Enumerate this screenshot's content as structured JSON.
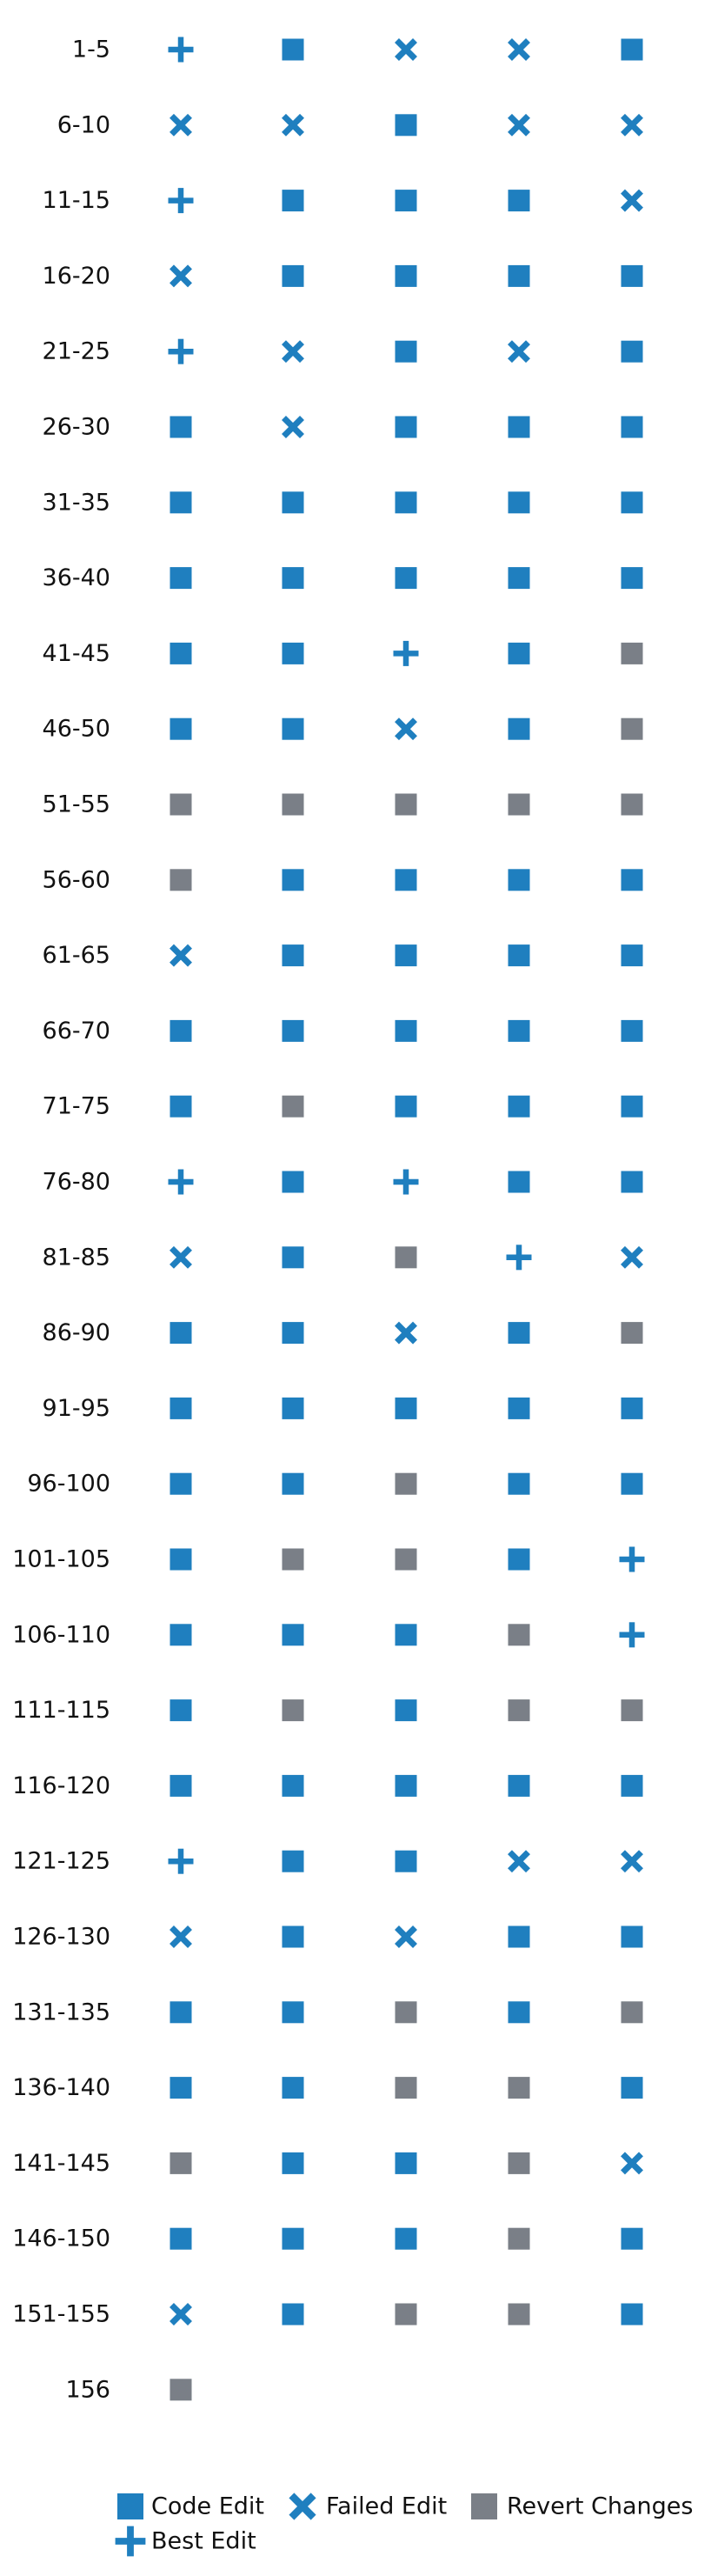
{
  "chart_data": {
    "type": "scatter",
    "title": "",
    "xlabel": "",
    "ylabel": "",
    "rows": [
      {
        "label": "1-5",
        "cells": [
          "best",
          "code",
          "failed",
          "failed",
          "code"
        ]
      },
      {
        "label": "6-10",
        "cells": [
          "failed",
          "failed",
          "code",
          "failed",
          "failed"
        ]
      },
      {
        "label": "11-15",
        "cells": [
          "best",
          "code",
          "code",
          "code",
          "failed"
        ]
      },
      {
        "label": "16-20",
        "cells": [
          "failed",
          "code",
          "code",
          "code",
          "code"
        ]
      },
      {
        "label": "21-25",
        "cells": [
          "best",
          "failed",
          "code",
          "failed",
          "code"
        ]
      },
      {
        "label": "26-30",
        "cells": [
          "code",
          "failed",
          "code",
          "code",
          "code"
        ]
      },
      {
        "label": "31-35",
        "cells": [
          "code",
          "code",
          "code",
          "code",
          "code"
        ]
      },
      {
        "label": "36-40",
        "cells": [
          "code",
          "code",
          "code",
          "code",
          "code"
        ]
      },
      {
        "label": "41-45",
        "cells": [
          "code",
          "code",
          "best",
          "code",
          "revert"
        ]
      },
      {
        "label": "46-50",
        "cells": [
          "code",
          "code",
          "failed",
          "code",
          "revert"
        ]
      },
      {
        "label": "51-55",
        "cells": [
          "revert",
          "revert",
          "revert",
          "revert",
          "revert"
        ]
      },
      {
        "label": "56-60",
        "cells": [
          "revert",
          "code",
          "code",
          "code",
          "code"
        ]
      },
      {
        "label": "61-65",
        "cells": [
          "failed",
          "code",
          "code",
          "code",
          "code"
        ]
      },
      {
        "label": "66-70",
        "cells": [
          "code",
          "code",
          "code",
          "code",
          "code"
        ]
      },
      {
        "label": "71-75",
        "cells": [
          "code",
          "revert",
          "code",
          "code",
          "code"
        ]
      },
      {
        "label": "76-80",
        "cells": [
          "best",
          "code",
          "best",
          "code",
          "code"
        ]
      },
      {
        "label": "81-85",
        "cells": [
          "failed",
          "code",
          "revert",
          "best",
          "failed"
        ]
      },
      {
        "label": "86-90",
        "cells": [
          "code",
          "code",
          "failed",
          "code",
          "revert"
        ]
      },
      {
        "label": "91-95",
        "cells": [
          "code",
          "code",
          "code",
          "code",
          "code"
        ]
      },
      {
        "label": "96-100",
        "cells": [
          "code",
          "code",
          "revert",
          "code",
          "code"
        ]
      },
      {
        "label": "101-105",
        "cells": [
          "code",
          "revert",
          "revert",
          "code",
          "best"
        ]
      },
      {
        "label": "106-110",
        "cells": [
          "code",
          "code",
          "code",
          "revert",
          "best"
        ]
      },
      {
        "label": "111-115",
        "cells": [
          "code",
          "revert",
          "code",
          "revert",
          "revert"
        ]
      },
      {
        "label": "116-120",
        "cells": [
          "code",
          "code",
          "code",
          "code",
          "code"
        ]
      },
      {
        "label": "121-125",
        "cells": [
          "best",
          "code",
          "code",
          "failed",
          "failed"
        ]
      },
      {
        "label": "126-130",
        "cells": [
          "failed",
          "code",
          "failed",
          "code",
          "code"
        ]
      },
      {
        "label": "131-135",
        "cells": [
          "code",
          "code",
          "revert",
          "code",
          "revert"
        ]
      },
      {
        "label": "136-140",
        "cells": [
          "code",
          "code",
          "revert",
          "revert",
          "code"
        ]
      },
      {
        "label": "141-145",
        "cells": [
          "revert",
          "code",
          "code",
          "revert",
          "failed"
        ]
      },
      {
        "label": "146-150",
        "cells": [
          "code",
          "code",
          "code",
          "revert",
          "code"
        ]
      },
      {
        "label": "151-155",
        "cells": [
          "failed",
          "code",
          "revert",
          "revert",
          "code"
        ]
      },
      {
        "label": "156",
        "cells": [
          "revert"
        ]
      }
    ],
    "legend": {
      "placement": "bottom",
      "entries": [
        {
          "key": "code",
          "label": "Code Edit",
          "marker": "square",
          "color": "#1f7fbf"
        },
        {
          "key": "failed",
          "label": "Failed Edit",
          "marker": "x",
          "color": "#1f7fbf"
        },
        {
          "key": "revert",
          "label": "Revert Changes",
          "marker": "square",
          "color": "#7a7f87"
        },
        {
          "key": "best",
          "label": "Best Edit",
          "marker": "plus",
          "color": "#1f7fbf"
        }
      ]
    }
  }
}
